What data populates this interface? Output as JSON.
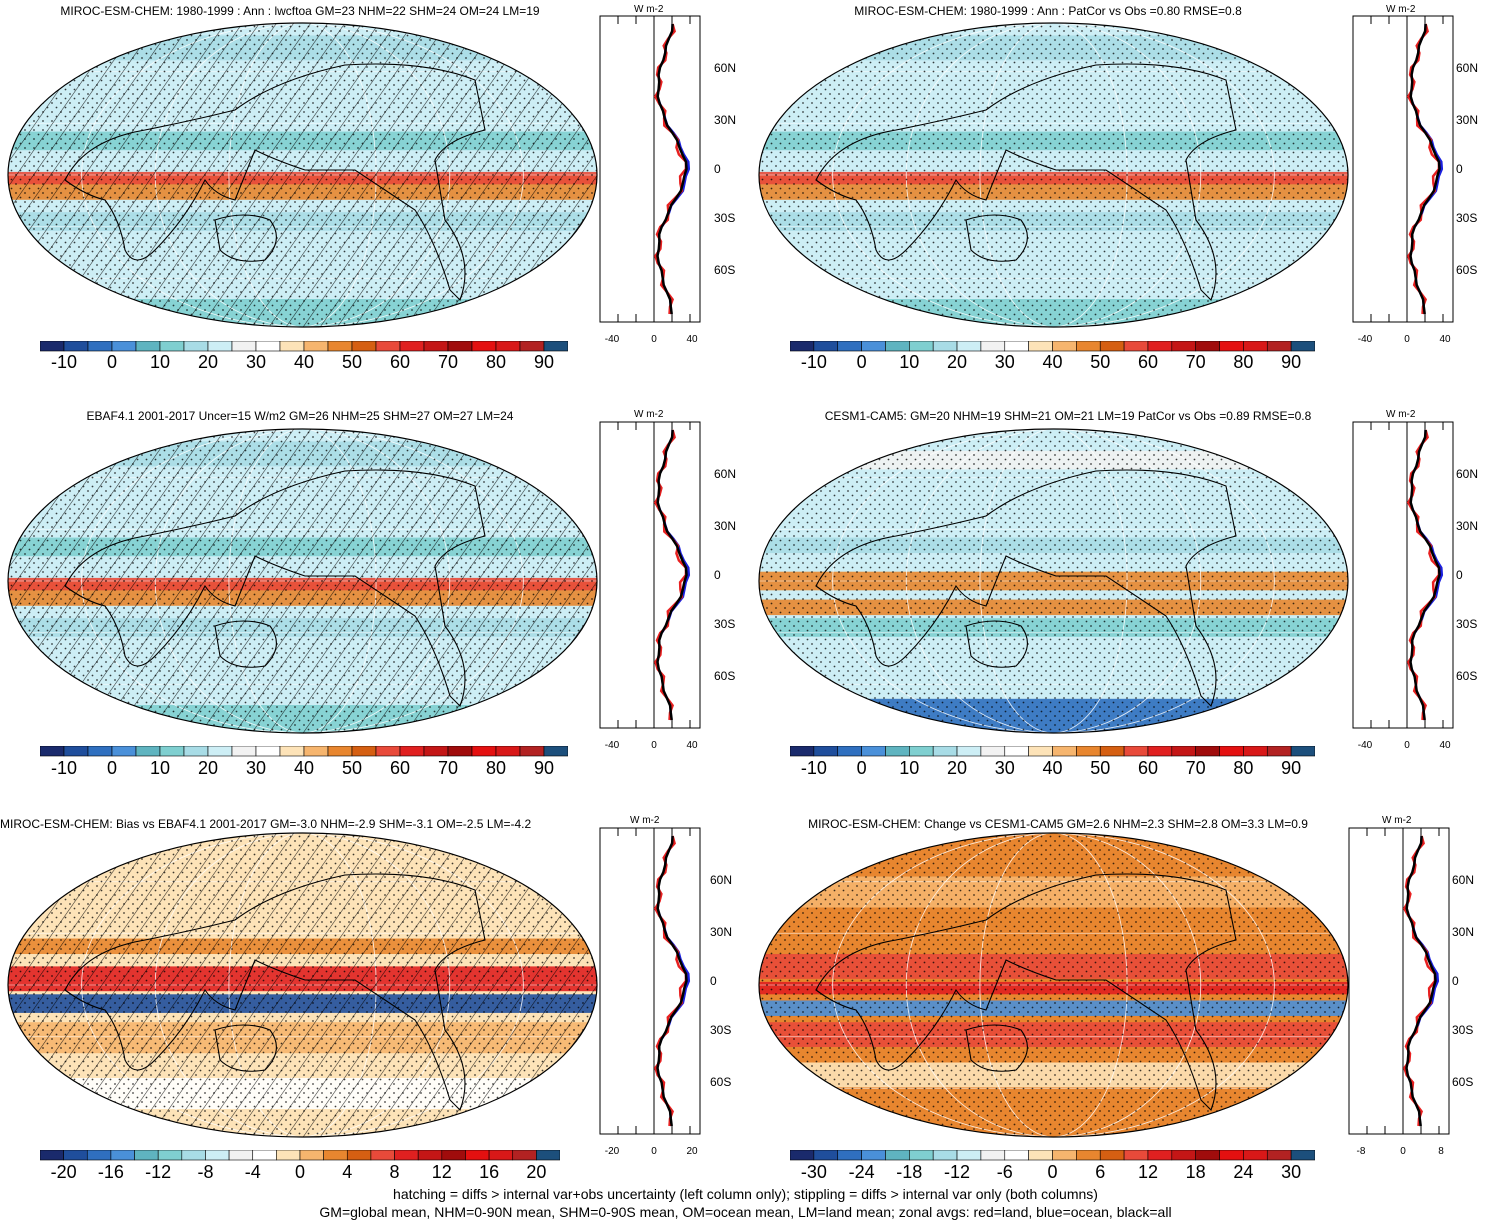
{
  "panels": [
    {
      "title": "MIROC-ESM-CHEM: 1980-1999 : Ann : lwcftoa GM=23 NHM=22 SHM=24 OM=24 LM=19",
      "map": "mean",
      "hatch": true,
      "stipple": true,
      "colorbar": [
        "-10",
        "0",
        "10",
        "20",
        "30",
        "40",
        "50",
        "60",
        "70",
        "80",
        "90"
      ],
      "zonal": {
        "unit": "W m-2",
        "lat_labels": [
          "60N",
          "30N",
          "0",
          "30S",
          "60S"
        ],
        "x_labels": [
          "-40",
          "0",
          "40"
        ]
      }
    },
    {
      "title": "MIROC-ESM-CHEM: 1980-1999 : Ann : PatCor vs Obs =0.80 RMSE=0.8",
      "map": "mean",
      "hatch": false,
      "stipple": true,
      "colorbar": [
        "-10",
        "0",
        "10",
        "20",
        "30",
        "40",
        "50",
        "60",
        "70",
        "80",
        "90"
      ],
      "zonal": {
        "unit": "W m-2",
        "lat_labels": [
          "60N",
          "30N",
          "0",
          "30S",
          "60S"
        ],
        "x_labels": [
          "-40",
          "0",
          "40"
        ]
      }
    },
    {
      "title": "EBAF4.1 2001-2017 Uncer=15 W/m2 GM=26 NHM=25 SHM=27 OM=27 LM=24",
      "map": "mean",
      "hatch": true,
      "stipple": true,
      "colorbar": [
        "-10",
        "0",
        "10",
        "20",
        "30",
        "40",
        "50",
        "60",
        "70",
        "80",
        "90"
      ],
      "zonal": {
        "unit": "W m-2",
        "lat_labels": [
          "60N",
          "30N",
          "0",
          "30S",
          "60S"
        ],
        "x_labels": [
          "-40",
          "0",
          "40"
        ]
      }
    },
    {
      "title": "CESM1-CAM5: GM=20 NHM=19 SHM=21 OM=21 LM=19 PatCor vs Obs =0.89 RMSE=0.8",
      "map": "mean2",
      "hatch": false,
      "stipple": true,
      "colorbar": [
        "-10",
        "0",
        "10",
        "20",
        "30",
        "40",
        "50",
        "60",
        "70",
        "80",
        "90"
      ],
      "zonal": {
        "unit": "W m-2",
        "lat_labels": [
          "60N",
          "30N",
          "0",
          "30S",
          "60S"
        ],
        "x_labels": [
          "-40",
          "0",
          "40"
        ]
      }
    },
    {
      "title": "MIROC-ESM-CHEM: Bias vs EBAF4.1 2001-2017 GM=-3.0 NHM=-2.9 SHM=-3.1 OM=-2.5 LM=-4.2",
      "map": "bias",
      "hatch": true,
      "stipple": true,
      "colorbar": [
        "-20",
        "-16",
        "-12",
        "-8",
        "-4",
        "0",
        "4",
        "8",
        "12",
        "16",
        "20"
      ],
      "zonal": {
        "unit": "W m-2",
        "lat_labels": [
          "60N",
          "30N",
          "0",
          "30S",
          "60S"
        ],
        "x_labels": [
          "-20",
          "0",
          "20"
        ]
      }
    },
    {
      "title": "MIROC-ESM-CHEM: Change vs CESM1-CAM5 GM=2.6 NHM=2.3 SHM=2.8 OM=3.3 LM=0.9",
      "map": "change",
      "hatch": false,
      "stipple": true,
      "colorbar": [
        "-30",
        "-24",
        "-18",
        "-12",
        "-6",
        "0",
        "6",
        "12",
        "18",
        "24",
        "30"
      ],
      "zonal": {
        "unit": "W m-2",
        "lat_labels": [
          "60N",
          "30N",
          "0",
          "30S",
          "60S"
        ],
        "x_labels": [
          "-8",
          "0",
          "8"
        ]
      }
    }
  ],
  "colors": {
    "palette": [
      "#1a2a6c",
      "#1f4e9c",
      "#2f6fbf",
      "#4a90d9",
      "#5fb4c0",
      "#7fcfd0",
      "#a8dce6",
      "#cdeef5",
      "#f2f2f2",
      "#ffffff",
      "#fde3b8",
      "#f6b56e",
      "#e8862f",
      "#d55f12",
      "#e84a3a",
      "#e02020",
      "#c41616",
      "#a00c0c",
      "#e41010",
      "#d81818",
      "#b22222",
      "#1c4f7c"
    ],
    "land_line": "#e82020",
    "ocean_line": "#1a20e0",
    "all_line": "#000000"
  },
  "footer": {
    "line1": "hatching = diffs > internal var+obs uncertainty (left column only); stippling = diffs > internal var only (both columns)",
    "line2": "GM=global mean, NHM=0-90N mean, SHM=0-90S mean, OM=ocean mean, LM=land mean; zonal avgs: red=land, blue=ocean, black=all"
  }
}
